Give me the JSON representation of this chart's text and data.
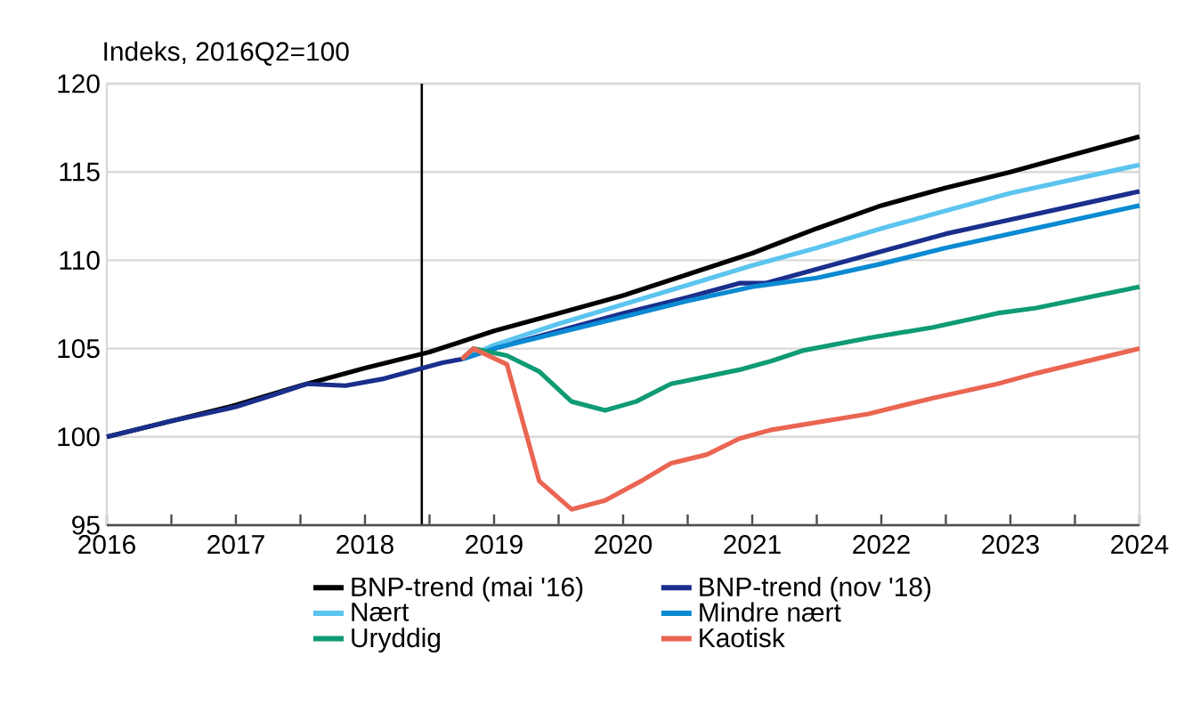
{
  "chart_data": {
    "type": "line",
    "ylabel": "Indeks, 2016Q2=100",
    "xlim": [
      2016,
      2024
    ],
    "ylim": [
      95,
      120
    ],
    "xticks": [
      {
        "value": 2016,
        "label": "2016"
      },
      {
        "value": 2016.5,
        "label": null
      },
      {
        "value": 2017,
        "label": "2017"
      },
      {
        "value": 2017.5,
        "label": null
      },
      {
        "value": 2018,
        "label": "2018"
      },
      {
        "value": 2018.5,
        "label": null
      },
      {
        "value": 2019,
        "label": "2019"
      },
      {
        "value": 2019.5,
        "label": null
      },
      {
        "value": 2020,
        "label": "2020"
      },
      {
        "value": 2020.5,
        "label": null
      },
      {
        "value": 2021,
        "label": "2021"
      },
      {
        "value": 2021.5,
        "label": null
      },
      {
        "value": 2022,
        "label": "2022"
      },
      {
        "value": 2022.5,
        "label": null
      },
      {
        "value": 2023,
        "label": "2023"
      },
      {
        "value": 2023.5,
        "label": null
      },
      {
        "value": 2024,
        "label": "2024"
      }
    ],
    "yticks": [
      95,
      100,
      105,
      110,
      115,
      120
    ],
    "grid": "y",
    "legend": "bottom",
    "marker": "none",
    "line_style": "solid",
    "ref_lines": [
      {
        "axis": "x",
        "value": 2018.44,
        "color": "#000000"
      }
    ],
    "series": [
      {
        "name": "BNP-trend (mai '16)",
        "color": "#000000",
        "x": [
          2016,
          2016.5,
          2017,
          2017.5,
          2018,
          2018.5,
          2019,
          2019.5,
          2020,
          2020.5,
          2021,
          2021.5,
          2022,
          2022.5,
          2023,
          2023.5,
          2024
        ],
        "values": [
          100,
          100.9,
          101.8,
          102.9,
          103.9,
          104.8,
          106.0,
          107.0,
          108.0,
          109.2,
          110.4,
          111.8,
          113.1,
          114.1,
          115.0,
          116.0,
          117.0
        ]
      },
      {
        "name": "BNP-trend (nov '18)",
        "color": "#1a2f8c",
        "x": [
          2016,
          2016.5,
          2017,
          2017.3,
          2017.55,
          2017.85,
          2018.15,
          2018.6,
          2018.75,
          2019,
          2019.5,
          2020,
          2020.5,
          2020.9,
          2021.1,
          2021.5,
          2022,
          2022.5,
          2023,
          2023.5,
          2024
        ],
        "values": [
          100,
          100.9,
          101.7,
          102.4,
          103.0,
          102.9,
          103.3,
          104.2,
          104.4,
          105.0,
          106.0,
          107.0,
          107.9,
          108.7,
          108.7,
          109.5,
          110.5,
          111.5,
          112.3,
          113.1,
          113.9
        ]
      },
      {
        "name": "Nært",
        "color": "#5bc4ef",
        "x": [
          2018.75,
          2019,
          2019.5,
          2020,
          2020.5,
          2021,
          2021.5,
          2022,
          2022.5,
          2023,
          2023.5,
          2024
        ],
        "values": [
          104.4,
          105.2,
          106.4,
          107.5,
          108.6,
          109.7,
          110.7,
          111.8,
          112.8,
          113.8,
          114.6,
          115.4
        ]
      },
      {
        "name": "Mindre nært",
        "color": "#0a8ad2",
        "x": [
          2018.75,
          2019,
          2019.5,
          2020,
          2020.5,
          2021,
          2021.5,
          2022,
          2022.5,
          2023,
          2023.5,
          2024
        ],
        "values": [
          104.4,
          105.0,
          105.9,
          106.8,
          107.7,
          108.5,
          109.0,
          109.8,
          110.7,
          111.5,
          112.3,
          113.1
        ]
      },
      {
        "name": "Uryddig",
        "color": "#0f9b74",
        "x": [
          2018.75,
          2018.84,
          2019.1,
          2019.35,
          2019.6,
          2019.86,
          2020.1,
          2020.37,
          2020.9,
          2021.15,
          2021.4,
          2021.9,
          2022.4,
          2022.9,
          2023.2,
          2024
        ],
        "values": [
          104.4,
          105.0,
          104.6,
          103.7,
          102.0,
          101.5,
          102.0,
          103.0,
          103.8,
          104.3,
          104.9,
          105.6,
          106.2,
          107.0,
          107.3,
          108.5
        ]
      },
      {
        "name": "Kaotisk",
        "color": "#ea6552",
        "x": [
          2018.75,
          2018.84,
          2019.1,
          2019.35,
          2019.6,
          2019.86,
          2020.14,
          2020.37,
          2020.65,
          2020.9,
          2021.15,
          2021.9,
          2022.4,
          2022.9,
          2023.2,
          2024
        ],
        "values": [
          104.4,
          105.0,
          104.1,
          97.5,
          95.9,
          96.4,
          97.5,
          98.5,
          99.0,
          99.9,
          100.4,
          101.3,
          102.2,
          103.0,
          103.6,
          105.0
        ]
      }
    ]
  }
}
